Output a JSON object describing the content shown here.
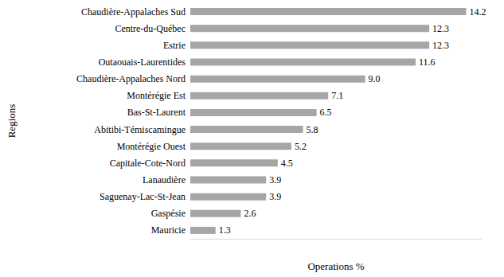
{
  "chart_data": {
    "type": "bar",
    "orientation": "horizontal",
    "x_label": "Operations %",
    "y_label": "Regions",
    "categories": [
      "Chaudière-Appalaches Sud",
      "Centre-du-Québec",
      "Estrie",
      "Outaouais-Laurentides",
      "Chaudière-Appalaches Nord",
      "Montérégie Est",
      "Bas-St-Laurent",
      "Abitibi-Témiscamingue",
      "Montérégie Ouest",
      "Capitale-Cote-Nord",
      "Lanaudière",
      "Saguenay-Lac-St-Jean",
      "Gaspésie",
      "Mauricie"
    ],
    "values": [
      14.2,
      12.3,
      12.3,
      11.6,
      9.0,
      7.1,
      6.5,
      5.8,
      5.2,
      4.5,
      3.9,
      3.9,
      2.6,
      1.3
    ],
    "value_labels": [
      "14.2",
      "12.3",
      "12.3",
      "11.6",
      "9.0",
      "7.1",
      "6.5",
      "5.8",
      "5.2",
      "4.5",
      "3.9",
      "3.9",
      "2.6",
      "1.3"
    ],
    "color": "#a6a6a6",
    "xlim": [
      0,
      15
    ],
    "grid": false,
    "data_labels": true,
    "tick_labels": "y"
  }
}
